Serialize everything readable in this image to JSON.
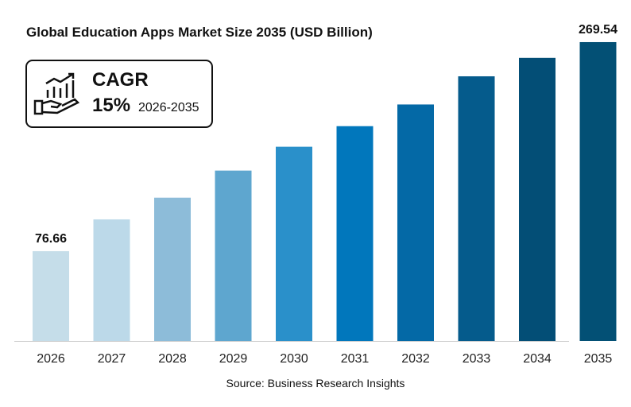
{
  "chart_data": {
    "type": "bar",
    "title": "Global Education Apps Market Size 2035 (USD Billion)",
    "categories": [
      "2026",
      "2027",
      "2028",
      "2029",
      "2030",
      "2031",
      "2032",
      "2033",
      "2034",
      "2035"
    ],
    "values": [
      76.66,
      106,
      126,
      151,
      173,
      192,
      212,
      238,
      255,
      269.54
    ],
    "data_labels": {
      "0": "76.66",
      "9": "269.54"
    },
    "colors": [
      "#c5dde9",
      "#bcd9e9",
      "#8dbcd9",
      "#5ea6cf",
      "#2a90ca",
      "#0177bc",
      "#0469a6",
      "#055b8c",
      "#034e76",
      "#035075"
    ],
    "xlabel": "",
    "ylabel": "",
    "grid": false,
    "legend": "none"
  },
  "cagr": {
    "label": "CAGR",
    "value": "15%",
    "range": "2026-2035",
    "icon": "growth-hand-icon"
  },
  "source": "Source:  Business Research Insights"
}
